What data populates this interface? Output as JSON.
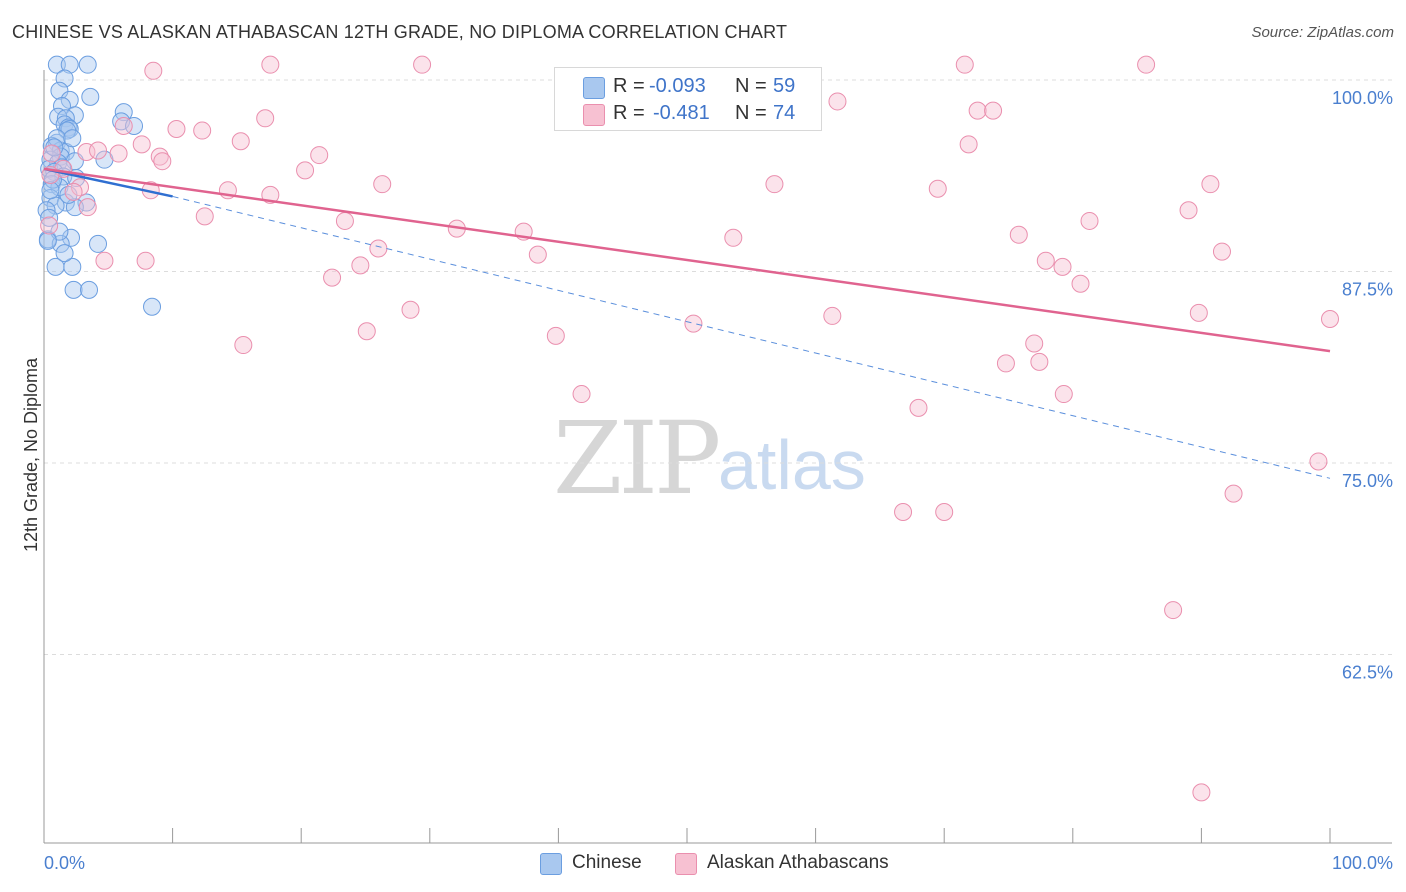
{
  "title": "CHINESE VS ALASKAN ATHABASCAN 12TH GRADE, NO DIPLOMA CORRELATION CHART",
  "source": "Source: ZipAtlas.com",
  "watermark": {
    "zip": "ZIP",
    "atlas": "atlas"
  },
  "legend": {
    "rows": [
      {
        "r_label": "R =",
        "r_value": "-0.093",
        "n_label": "N =",
        "n_value": "59",
        "color": "#a9c8ef",
        "border": "#6b9ee0"
      },
      {
        "r_label": "R =",
        "r_value": "-0.481",
        "n_label": "N =",
        "n_value": "74",
        "color": "#f7c1d2",
        "border": "#ea8fae"
      }
    ]
  },
  "bottom_legend": {
    "items": [
      {
        "label": "Chinese",
        "color": "#a9c8ef",
        "border": "#6b9ee0"
      },
      {
        "label": "Alaskan Athabascans",
        "color": "#f7c1d2",
        "border": "#ea8fae"
      }
    ]
  },
  "chart_data": {
    "type": "scatter",
    "title": "CHINESE VS ALASKAN ATHABASCAN 12TH GRADE, NO DIPLOMA CORRELATION CHART",
    "ylabel": "12th Grade, No Diploma",
    "xlabel": "",
    "xlim": [
      0,
      100
    ],
    "ylim": [
      50,
      102
    ],
    "x_tick_labels": [
      "0.0%",
      "100.0%"
    ],
    "y_ticks": [
      100,
      87.5,
      75,
      62.5
    ],
    "y_tick_labels": [
      "100.0%",
      "87.5%",
      "75.0%",
      "62.5%"
    ],
    "grid": true,
    "series": [
      {
        "name": "Chinese",
        "color": "#6b9ee0",
        "fill": "#a9c8ef",
        "trend": {
          "x0": 0,
          "y0": 94.2,
          "x1": 10,
          "y1": 92.4,
          "dashed_to_x": 100,
          "dashed_to_y": 74.0
        },
        "points": [
          [
            1,
            101
          ],
          [
            2,
            101
          ],
          [
            3.4,
            101
          ],
          [
            1.6,
            100.1
          ],
          [
            1.2,
            99.3
          ],
          [
            3.6,
            98.9
          ],
          [
            2,
            98.7
          ],
          [
            1.4,
            98.3
          ],
          [
            6.2,
            97.9
          ],
          [
            2.4,
            97.7
          ],
          [
            1.1,
            97.6
          ],
          [
            1.7,
            97.5
          ],
          [
            6,
            97.3
          ],
          [
            1.6,
            97.1
          ],
          [
            7,
            97.0
          ],
          [
            1.9,
            96.9
          ],
          [
            2,
            96.8
          ],
          [
            1.8,
            96.7
          ],
          [
            1.0,
            95.9
          ],
          [
            0.6,
            95.7
          ],
          [
            1.3,
            95.4
          ],
          [
            1.7,
            95.3
          ],
          [
            1.3,
            95.0
          ],
          [
            0.5,
            94.8
          ],
          [
            2.4,
            94.7
          ],
          [
            1.1,
            94.6
          ],
          [
            1.4,
            94.3
          ],
          [
            4.7,
            94.8
          ],
          [
            0.4,
            94.2
          ],
          [
            0.8,
            94.0
          ],
          [
            1.5,
            93.7
          ],
          [
            2.5,
            93.6
          ],
          [
            0.6,
            93.2
          ],
          [
            1.2,
            93.0
          ],
          [
            0.5,
            92.3
          ],
          [
            1.7,
            92.0
          ],
          [
            3.3,
            92.0
          ],
          [
            2.4,
            91.7
          ],
          [
            0.9,
            91.8
          ],
          [
            0.2,
            91.5
          ],
          [
            0.3,
            89.6
          ],
          [
            2.1,
            89.7
          ],
          [
            4.2,
            89.3
          ],
          [
            1.3,
            89.3
          ],
          [
            0.9,
            87.8
          ],
          [
            2.2,
            87.8
          ],
          [
            2.3,
            86.3
          ],
          [
            3.5,
            86.3
          ],
          [
            8.4,
            85.2
          ],
          [
            1.0,
            96.2
          ],
          [
            2.2,
            96.2
          ],
          [
            0.7,
            93.5
          ],
          [
            1.9,
            92.5
          ],
          [
            1.2,
            90.1
          ],
          [
            0.4,
            91.0
          ],
          [
            0.3,
            89.5
          ],
          [
            1.6,
            88.7
          ],
          [
            0.8,
            95.6
          ],
          [
            0.5,
            92.8
          ]
        ]
      },
      {
        "name": "Alaskan Athabascans",
        "color": "#ea8fae",
        "fill": "#f7c1d2",
        "trend": {
          "x0": 0,
          "y0": 94.2,
          "x1": 100,
          "y1": 82.3
        },
        "points": [
          [
            17.6,
            101
          ],
          [
            29.4,
            101
          ],
          [
            71.6,
            101
          ],
          [
            85.7,
            101
          ],
          [
            8.5,
            100.6
          ],
          [
            61.7,
            98.6
          ],
          [
            72.6,
            98.0
          ],
          [
            73.8,
            98.0
          ],
          [
            17.2,
            97.5
          ],
          [
            6.2,
            97.0
          ],
          [
            10.3,
            96.8
          ],
          [
            12.3,
            96.7
          ],
          [
            15.3,
            96.0
          ],
          [
            71.9,
            95.8
          ],
          [
            7.6,
            95.8
          ],
          [
            3.3,
            95.3
          ],
          [
            4.2,
            95.4
          ],
          [
            5.8,
            95.2
          ],
          [
            21.4,
            95.1
          ],
          [
            9.0,
            95.0
          ],
          [
            9.2,
            94.7
          ],
          [
            20.3,
            94.1
          ],
          [
            1.5,
            94.2
          ],
          [
            0.5,
            93.8
          ],
          [
            26.3,
            93.2
          ],
          [
            56.8,
            93.2
          ],
          [
            69.5,
            92.9
          ],
          [
            90.7,
            93.2
          ],
          [
            14.3,
            92.8
          ],
          [
            17.6,
            92.5
          ],
          [
            2.8,
            93.0
          ],
          [
            8.3,
            92.8
          ],
          [
            3.4,
            91.7
          ],
          [
            89.0,
            91.5
          ],
          [
            12.5,
            91.1
          ],
          [
            23.4,
            90.8
          ],
          [
            81.3,
            90.8
          ],
          [
            32.1,
            90.3
          ],
          [
            37.3,
            90.1
          ],
          [
            53.6,
            89.7
          ],
          [
            75.8,
            89.9
          ],
          [
            26.0,
            89.0
          ],
          [
            38.4,
            88.6
          ],
          [
            91.6,
            88.8
          ],
          [
            24.6,
            87.9
          ],
          [
            77.9,
            88.2
          ],
          [
            79.2,
            87.8
          ],
          [
            4.7,
            88.2
          ],
          [
            7.9,
            88.2
          ],
          [
            22.4,
            87.1
          ],
          [
            80.6,
            86.7
          ],
          [
            28.5,
            85.0
          ],
          [
            61.3,
            84.6
          ],
          [
            89.8,
            84.8
          ],
          [
            100,
            84.4
          ],
          [
            50.5,
            84.1
          ],
          [
            25.1,
            83.6
          ],
          [
            39.8,
            83.3
          ],
          [
            15.5,
            82.7
          ],
          [
            77.0,
            82.8
          ],
          [
            74.8,
            81.5
          ],
          [
            77.4,
            81.6
          ],
          [
            41.8,
            79.5
          ],
          [
            79.3,
            79.5
          ],
          [
            68.0,
            78.6
          ],
          [
            99.1,
            75.1
          ],
          [
            92.5,
            73.0
          ],
          [
            66.8,
            71.8
          ],
          [
            70.0,
            71.8
          ],
          [
            87.8,
            65.4
          ],
          [
            90.0,
            53.5
          ],
          [
            2.3,
            92.7
          ],
          [
            0.6,
            95.2
          ],
          [
            0.4,
            90.5
          ]
        ]
      }
    ]
  }
}
